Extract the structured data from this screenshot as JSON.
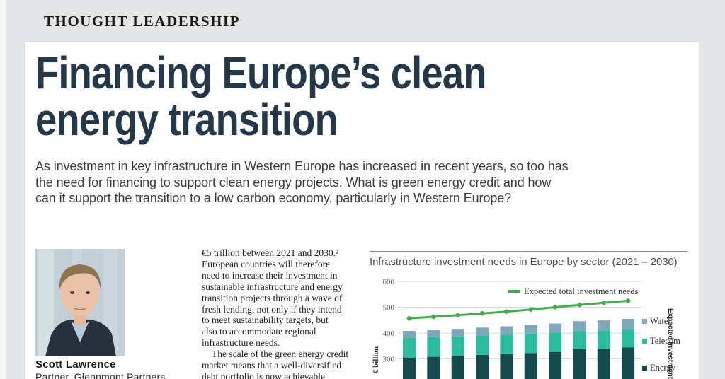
{
  "page": {
    "kicker": "THOUGHT LEADERSHIP",
    "title": "Financing Europe’s clean\nenergy transition",
    "intro": "As investment in key infrastructure in Western Europe has increased in recent years, so too has\nthe need for financing to support clean energy projects. What is green energy credit and how\ncan it support the transition to a low carbon economy, particularly in Western Europe?"
  },
  "author": {
    "name": "Scott Lawrence",
    "role": "Partner, Glennmont Partners",
    "photo": "portrait-of-man-in-dark-suit-and-light-blue-shirt"
  },
  "article": {
    "para1": "€5 trillion between 2021 and 2030.²\nEuropean countries will therefore\nneed to increase their investment in\nsustainable infrastructure and energy\ntransition projects through a wave of\nfresh lending, not only if they intend\nto meet sustainability targets, but\nalso to accommodate regional\ninfrastructure needs.",
    "para2": "The scale of the green energy credit\nmarket means that a well-diversified\ndebt portfolio is now achievable"
  },
  "chart_data": {
    "type": "stacked-bar+line",
    "title": "Infrastructure investment needs in Europe by sector (2021 – 2030)",
    "ylabel": "€ billion",
    "right_axis_label_visible": "Expected investment giv",
    "yticks": [
      600,
      500,
      400,
      300
    ],
    "ylim_top": 600,
    "n_bars": 10,
    "x_labels_visible": false,
    "grid": true,
    "legend_position": "right",
    "series": [
      {
        "name": "Energy",
        "color": "#144a4c",
        "values": [
          305,
          308,
          311,
          315,
          318,
          322,
          327,
          337,
          339,
          344
        ]
      },
      {
        "name": "Telecom",
        "color": "#2bbc9c",
        "values": [
          76,
          76,
          76,
          76,
          76,
          76,
          75,
          71,
          71,
          71
        ]
      },
      {
        "name": "Water",
        "color": "#7fa8ba",
        "values": [
          27,
          28,
          29,
          30,
          32,
          33,
          35,
          38,
          39,
          40
        ]
      }
    ],
    "bar_totals": [
      408,
      412,
      416,
      421,
      426,
      431,
      437,
      446,
      449,
      455
    ],
    "line_series": {
      "name": "Expected total investment needs",
      "color": "#44ad4f",
      "values": [
        457,
        463,
        469,
        476,
        483,
        491,
        500,
        509,
        517,
        525
      ]
    }
  },
  "colors": {
    "page_background": "#e5e6e8",
    "card_background": "#ffffff",
    "headline": "#25384a",
    "gridline": "#d9d9d9"
  }
}
